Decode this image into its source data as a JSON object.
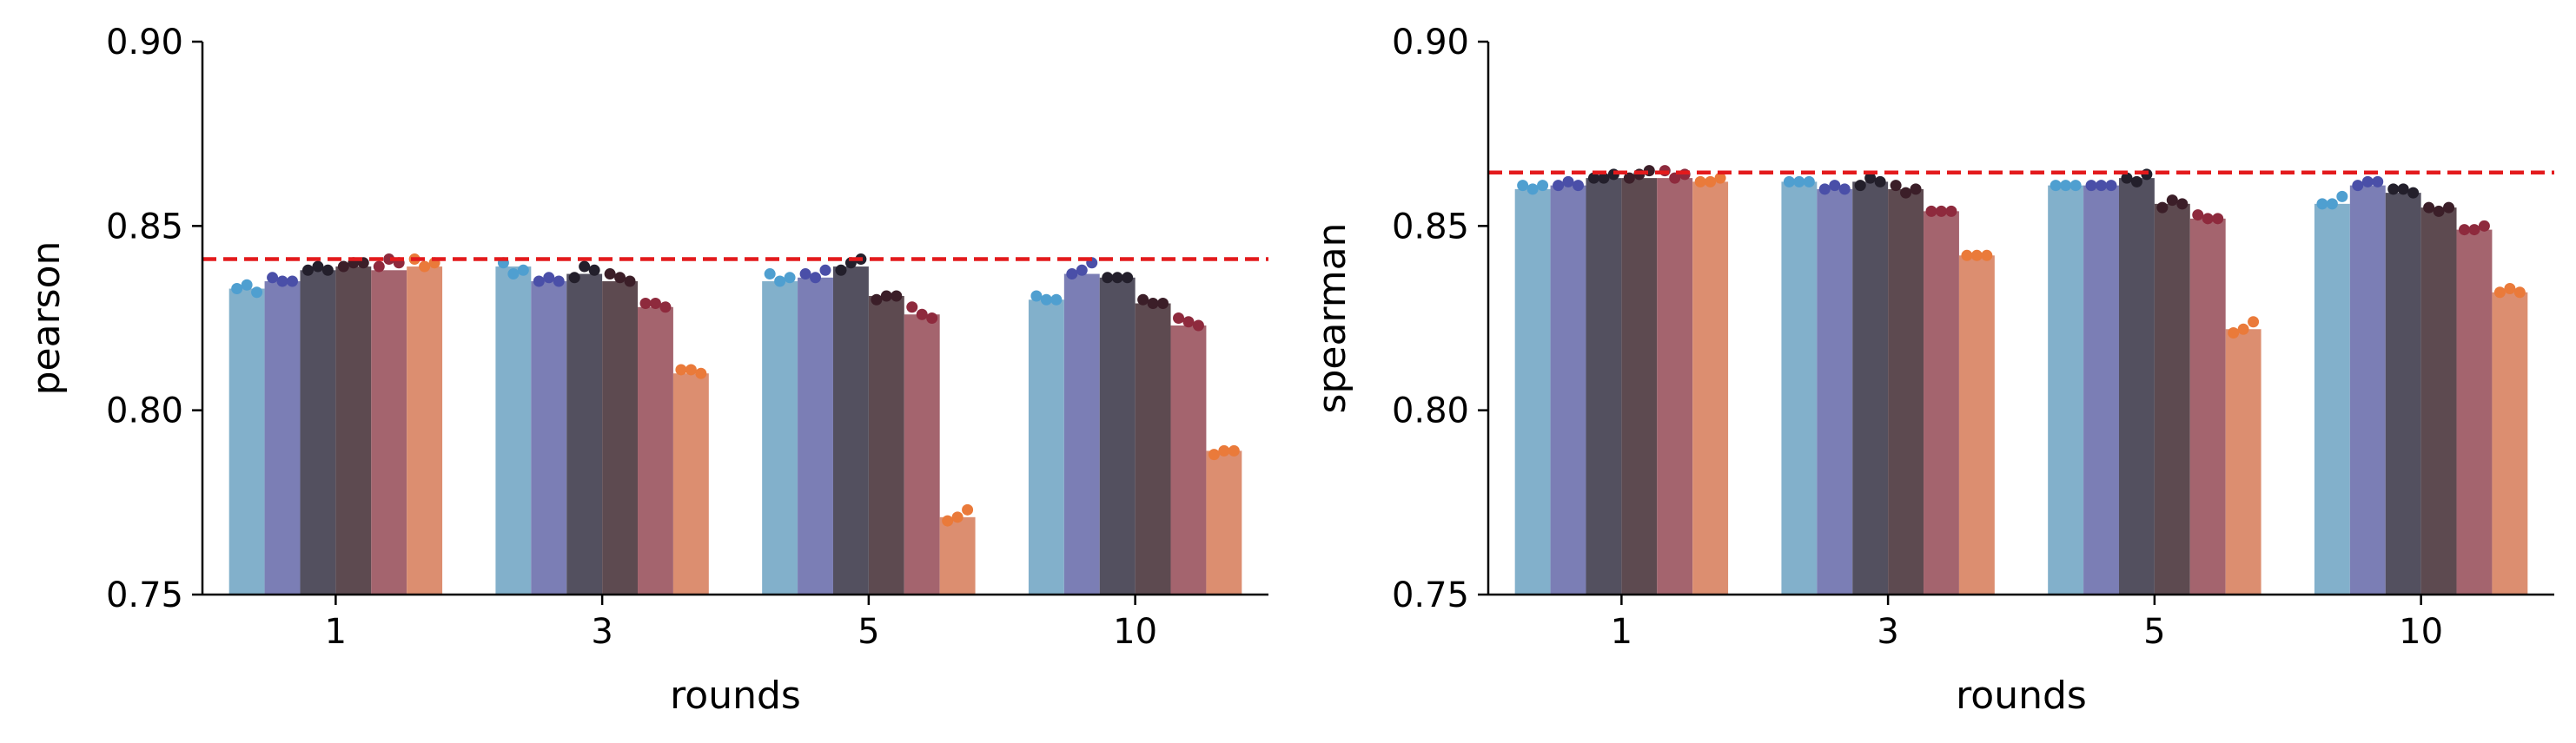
{
  "chart_data": [
    {
      "type": "bar",
      "xlabel": "rounds",
      "ylabel": "pearson",
      "categories": [
        "1",
        "3",
        "5",
        "10"
      ],
      "ylim": [
        0.75,
        0.9
      ],
      "yticks": [
        "0.75",
        "0.80",
        "0.85",
        "0.90"
      ],
      "reference_line": {
        "value": 0.841,
        "color": "#e31a1c",
        "style": "dashed"
      },
      "grid": false,
      "legend": "none",
      "series": [
        {
          "color": "#82b0cb",
          "point_color": "#4f9fd0",
          "values": [
            0.833,
            0.839,
            0.835,
            0.83
          ],
          "points": [
            [
              0.833,
              0.834,
              0.832
            ],
            [
              0.84,
              0.837,
              0.838
            ],
            [
              0.837,
              0.835,
              0.836
            ],
            [
              0.831,
              0.83,
              0.83
            ]
          ]
        },
        {
          "color": "#7b7eb5",
          "point_color": "#4a4fa8",
          "values": [
            0.835,
            0.835,
            0.836,
            0.837
          ],
          "points": [
            [
              0.836,
              0.835,
              0.835
            ],
            [
              0.835,
              0.836,
              0.835
            ],
            [
              0.837,
              0.836,
              0.838
            ],
            [
              0.837,
              0.838,
              0.84
            ]
          ]
        },
        {
          "color": "#53505f",
          "point_color": "#231f2b",
          "values": [
            0.838,
            0.837,
            0.839,
            0.836
          ],
          "points": [
            [
              0.838,
              0.839,
              0.838
            ],
            [
              0.836,
              0.839,
              0.838
            ],
            [
              0.838,
              0.84,
              0.841
            ],
            [
              0.836,
              0.836,
              0.836
            ]
          ]
        },
        {
          "color": "#5d4a50",
          "point_color": "#3b1e28",
          "values": [
            0.839,
            0.835,
            0.831,
            0.829
          ],
          "points": [
            [
              0.839,
              0.84,
              0.84
            ],
            [
              0.837,
              0.836,
              0.835
            ],
            [
              0.83,
              0.831,
              0.831
            ],
            [
              0.83,
              0.829,
              0.829
            ]
          ]
        },
        {
          "color": "#a4646e",
          "point_color": "#8e2a3d",
          "values": [
            0.838,
            0.828,
            0.826,
            0.823
          ],
          "points": [
            [
              0.839,
              0.841,
              0.84
            ],
            [
              0.829,
              0.829,
              0.828
            ],
            [
              0.828,
              0.826,
              0.825
            ],
            [
              0.825,
              0.824,
              0.823
            ]
          ]
        },
        {
          "color": "#dc8e70",
          "point_color": "#ea7a3a",
          "values": [
            0.839,
            0.81,
            0.771,
            0.789
          ],
          "points": [
            [
              0.841,
              0.839,
              0.84
            ],
            [
              0.811,
              0.811,
              0.81
            ],
            [
              0.77,
              0.771,
              0.773
            ],
            [
              0.788,
              0.789,
              0.789
            ]
          ]
        }
      ]
    },
    {
      "type": "bar",
      "xlabel": "rounds",
      "ylabel": "spearman",
      "categories": [
        "1",
        "3",
        "5",
        "10"
      ],
      "ylim": [
        0.75,
        0.9
      ],
      "yticks": [
        "0.75",
        "0.80",
        "0.85",
        "0.90"
      ],
      "reference_line": {
        "value": 0.8645,
        "color": "#e31a1c",
        "style": "dashed"
      },
      "grid": false,
      "legend": "none",
      "series": [
        {
          "color": "#82b0cb",
          "point_color": "#4f9fd0",
          "values": [
            0.86,
            0.862,
            0.861,
            0.856
          ],
          "points": [
            [
              0.861,
              0.86,
              0.861
            ],
            [
              0.862,
              0.862,
              0.862
            ],
            [
              0.861,
              0.861,
              0.861
            ],
            [
              0.856,
              0.856,
              0.858
            ]
          ]
        },
        {
          "color": "#7b7eb5",
          "point_color": "#4a4fa8",
          "values": [
            0.861,
            0.86,
            0.861,
            0.861
          ],
          "points": [
            [
              0.861,
              0.862,
              0.861
            ],
            [
              0.86,
              0.861,
              0.86
            ],
            [
              0.861,
              0.861,
              0.861
            ],
            [
              0.861,
              0.862,
              0.862
            ]
          ]
        },
        {
          "color": "#53505f",
          "point_color": "#231f2b",
          "values": [
            0.863,
            0.862,
            0.863,
            0.859
          ],
          "points": [
            [
              0.863,
              0.863,
              0.864
            ],
            [
              0.861,
              0.863,
              0.862
            ],
            [
              0.863,
              0.862,
              0.864
            ],
            [
              0.86,
              0.86,
              0.859
            ]
          ]
        },
        {
          "color": "#5d4a50",
          "point_color": "#3b1e28",
          "values": [
            0.863,
            0.86,
            0.856,
            0.855
          ],
          "points": [
            [
              0.863,
              0.864,
              0.865
            ],
            [
              0.861,
              0.859,
              0.86
            ],
            [
              0.855,
              0.857,
              0.856
            ],
            [
              0.855,
              0.854,
              0.855
            ]
          ]
        },
        {
          "color": "#a4646e",
          "point_color": "#8e2a3d",
          "values": [
            0.863,
            0.854,
            0.852,
            0.849
          ],
          "points": [
            [
              0.865,
              0.863,
              0.864
            ],
            [
              0.854,
              0.854,
              0.854
            ],
            [
              0.853,
              0.852,
              0.852
            ],
            [
              0.849,
              0.849,
              0.85
            ]
          ]
        },
        {
          "color": "#dc8e70",
          "point_color": "#ea7a3a",
          "values": [
            0.862,
            0.842,
            0.822,
            0.832
          ],
          "points": [
            [
              0.862,
              0.862,
              0.863
            ],
            [
              0.842,
              0.842,
              0.842
            ],
            [
              0.821,
              0.822,
              0.824
            ],
            [
              0.832,
              0.833,
              0.832
            ]
          ]
        }
      ]
    }
  ]
}
